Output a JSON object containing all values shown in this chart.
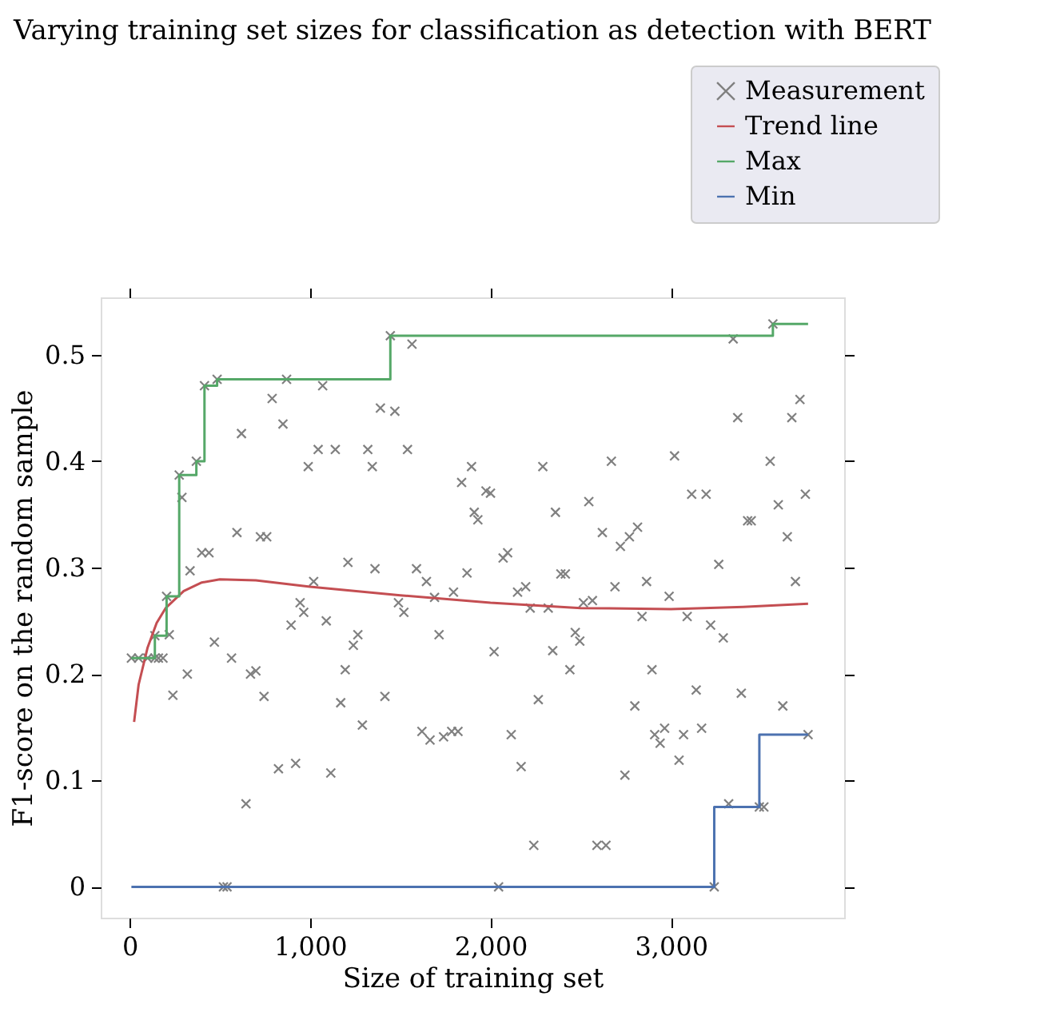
{
  "chart_data": {
    "type": "scatter",
    "title": "Varying training set sizes for classification as detection with BERT",
    "xlabel": "Size of training set",
    "ylabel": "F1-score on the random sample",
    "xlim": [
      -160,
      3960
    ],
    "ylim": [
      -0.029,
      0.554
    ],
    "xticks": [
      0,
      {
        "value": 1000,
        "label": "1,000"
      },
      {
        "value": 2000,
        "label": "2,000"
      },
      {
        "value": 3000,
        "label": "3,000"
      }
    ],
    "yticks": [
      0,
      0.1,
      0.2,
      0.3,
      0.4,
      0.5
    ],
    "grid": true,
    "legend": "top right",
    "series": [
      {
        "name": "Measurement",
        "marker": "cross",
        "color": "#808080",
        "x": [
          10,
          50,
          100,
          140,
          160,
          185,
          140,
          220,
          205,
          240,
          320,
          335,
          400,
          440,
          275,
          290,
          370,
          415,
          485,
          470,
          565,
          595,
          620,
          670,
          700,
          725,
          745,
          760,
          790,
          825,
          850,
          870,
          895,
          920,
          945,
          965,
          990,
          1020,
          1045,
          1070,
          1090,
          1115,
          1140,
          1170,
          1195,
          1210,
          1240,
          1265,
          1290,
          1320,
          1345,
          1360,
          1390,
          1415,
          1445,
          1470,
          1490,
          1520,
          1540,
          1565,
          1590,
          1620,
          1645,
          1665,
          1690,
          1715,
          1740,
          1785,
          1795,
          1820,
          1840,
          1870,
          1895,
          1910,
          1930,
          1975,
          2000,
          2020,
          2045,
          2070,
          2095,
          2115,
          2150,
          2170,
          2195,
          2220,
          2240,
          2265,
          2290,
          2320,
          2345,
          2360,
          2390,
          2415,
          2440,
          2470,
          2495,
          2515,
          2545,
          2565,
          2590,
          2620,
          2640,
          2670,
          2690,
          2720,
          2745,
          2770,
          2800,
          2815,
          2840,
          2865,
          2895,
          2910,
          2940,
          2965,
          2990,
          3020,
          3045,
          3070,
          3090,
          3115,
          3140,
          3170,
          3195,
          3220,
          3240,
          3265,
          3290,
          3320,
          3345,
          3370,
          3390,
          3425,
          3445,
          3490,
          3515,
          3550,
          3565,
          3595,
          3620,
          3645,
          3670,
          3690,
          3715,
          3745,
          3760,
          520,
          540,
          645
        ],
        "values": [
          0.215,
          0.215,
          0.215,
          0.215,
          0.215,
          0.215,
          0.236,
          0.237,
          0.273,
          0.18,
          0.2,
          0.297,
          0.314,
          0.314,
          0.387,
          0.366,
          0.4,
          0.471,
          0.477,
          0.23,
          0.215,
          0.333,
          0.426,
          0.2,
          0.203,
          0.329,
          0.179,
          0.329,
          0.459,
          0.111,
          0.435,
          0.477,
          0.246,
          0.116,
          0.267,
          0.258,
          0.395,
          0.287,
          0.411,
          0.471,
          0.25,
          0.107,
          0.411,
          0.173,
          0.204,
          0.305,
          0.227,
          0.237,
          0.152,
          0.411,
          0.395,
          0.299,
          0.45,
          0.179,
          0.518,
          0.447,
          0.267,
          0.258,
          0.411,
          0.51,
          0.299,
          0.146,
          0.287,
          0.138,
          0.272,
          0.237,
          0.141,
          0.146,
          0.277,
          0.146,
          0.38,
          0.295,
          0.395,
          0.352,
          0.345,
          0.372,
          0.37,
          0.221,
          0,
          0.309,
          0.314,
          0.143,
          0.277,
          0.113,
          0.282,
          0.262,
          0.039,
          0.176,
          0.395,
          0.262,
          0.222,
          0.352,
          0.294,
          0.294,
          0.204,
          0.239,
          0.231,
          0.267,
          0.362,
          0.269,
          0.039,
          0.333,
          0.039,
          0.4,
          0.282,
          0.32,
          0.105,
          0.329,
          0.17,
          0.338,
          0.254,
          0.287,
          0.204,
          0.143,
          0.135,
          0.149,
          0.273,
          0.405,
          0.119,
          0.143,
          0.254,
          0.369,
          0.185,
          0.149,
          0.369,
          0.246,
          0,
          0.303,
          0.234,
          0.078,
          0.515,
          0.441,
          0.182,
          0.344,
          0.344,
          0.075,
          0.075,
          0.4,
          0.529,
          0.359,
          0.17,
          0.329,
          0.441,
          0.287,
          0.458,
          0.369,
          0.143,
          0,
          0,
          0.078
        ]
      },
      {
        "name": "Trend line",
        "type": "line",
        "color": "#c44e52",
        "x": [
          25,
          50,
          100,
          150,
          200,
          300,
          400,
          500,
          700,
          1000,
          1500,
          2000,
          2500,
          3000,
          3400,
          3760
        ],
        "values": [
          0.155,
          0.19,
          0.225,
          0.248,
          0.262,
          0.278,
          0.286,
          0.289,
          0.288,
          0.282,
          0.274,
          0.267,
          0.262,
          0.261,
          0.263,
          0.266
        ]
      },
      {
        "name": "Max",
        "type": "step",
        "color": "#55a868",
        "x": [
          10,
          140,
          205,
          275,
          370,
          415,
          485,
          1445,
          3565,
          3760
        ],
        "values": [
          0.215,
          0.236,
          0.273,
          0.387,
          0.4,
          0.471,
          0.477,
          0.518,
          0.529,
          0.529
        ]
      },
      {
        "name": "Min",
        "type": "step",
        "color": "#4c72b0",
        "x": [
          10,
          3240,
          3490,
          3760
        ],
        "values": [
          0,
          0.075,
          0.143,
          0.143
        ]
      }
    ]
  }
}
